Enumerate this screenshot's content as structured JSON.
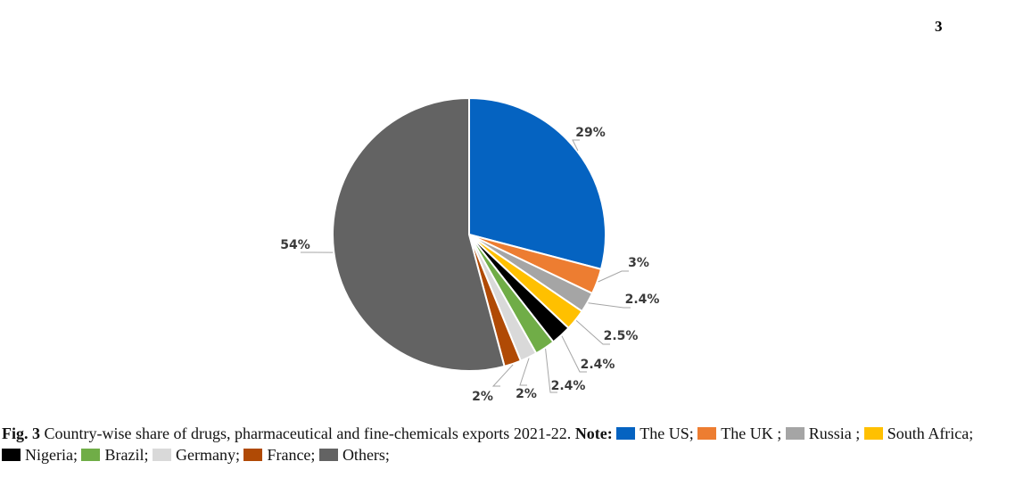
{
  "page_number": "3",
  "caption": {
    "fig_label": "Fig. 3",
    "text": "Country-wise share of drugs, pharmaceutical and fine-chemicals exports 2021-22.",
    "note_label": "Note:",
    "legend": [
      {
        "label": "The US;"
      },
      {
        "label": "The UK ;"
      },
      {
        "label": "Russia ;"
      },
      {
        "label": "South Africa;"
      },
      {
        "label": "Nigeria;"
      },
      {
        "label": "Brazil;"
      },
      {
        "label": "Germany;"
      },
      {
        "label": "France;"
      },
      {
        "label": "Others;"
      }
    ]
  },
  "chart_data": {
    "type": "pie",
    "title": "",
    "start_angle_deg": 0,
    "direction": "clockwise",
    "legend_position": "bottom",
    "slices": [
      {
        "category": "The US",
        "value": 29,
        "label": "29%",
        "color": "#0563c1"
      },
      {
        "category": "The UK",
        "value": 3,
        "label": "3%",
        "color": "#ed7d31"
      },
      {
        "category": "Russia",
        "value": 2.4,
        "label": "2.4%",
        "color": "#a5a5a5"
      },
      {
        "category": "South Africa",
        "value": 2.5,
        "label": "2.5%",
        "color": "#ffc000"
      },
      {
        "category": "Nigeria",
        "value": 2.4,
        "label": "2.4%",
        "color": "#000000"
      },
      {
        "category": "Brazil",
        "value": 2.4,
        "label": "2.4%",
        "color": "#70ad47"
      },
      {
        "category": "Germany",
        "value": 2,
        "label": "2%",
        "color": "#d9d9d9"
      },
      {
        "category": "France",
        "value": 2,
        "label": "2%",
        "color": "#b04a05"
      },
      {
        "category": "Others",
        "value": 54,
        "label": "54%",
        "color": "#636363"
      }
    ]
  }
}
